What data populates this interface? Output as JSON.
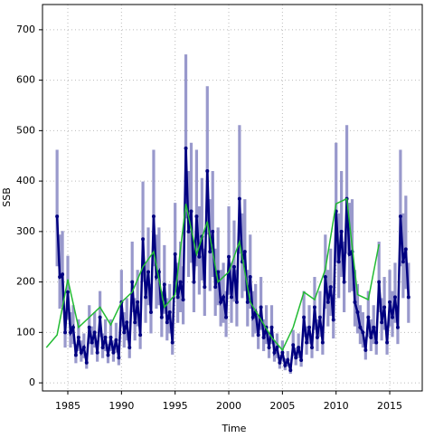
{
  "chart_data": {
    "type": "line",
    "xlabel": "Time",
    "ylabel": "SSB",
    "xlim": [
      1982.64,
      2018.03
    ],
    "ylim": [
      -16,
      750
    ],
    "xticks": [
      1985,
      1990,
      1995,
      2000,
      2005,
      2010,
      2015
    ],
    "yticks": [
      0,
      100,
      200,
      300,
      400,
      500,
      600,
      700
    ],
    "grid": true,
    "series": [
      {
        "color": "#000080",
        "band_color": "#9999cc",
        "x": [
          1984,
          1984.25,
          1984.5,
          1984.75,
          1985,
          1985.25,
          1985.5,
          1985.75,
          1986,
          1986.25,
          1986.5,
          1986.75,
          1987,
          1987.25,
          1987.5,
          1987.75,
          1988,
          1988.25,
          1988.5,
          1988.75,
          1989,
          1989.25,
          1989.5,
          1989.75,
          1990,
          1990.25,
          1990.5,
          1990.75,
          1991,
          1991.25,
          1991.5,
          1991.75,
          1992,
          1992.25,
          1992.5,
          1992.75,
          1993,
          1993.25,
          1993.5,
          1993.75,
          1994,
          1994.25,
          1994.5,
          1994.75,
          1995,
          1995.25,
          1995.5,
          1995.75,
          1996,
          1996.25,
          1996.5,
          1996.75,
          1997,
          1997.25,
          1997.5,
          1997.75,
          1998,
          1998.25,
          1998.5,
          1998.75,
          1999,
          1999.25,
          1999.5,
          1999.75,
          2000,
          2000.25,
          2000.5,
          2000.75,
          2001,
          2001.25,
          2001.5,
          2001.75,
          2002,
          2002.25,
          2002.5,
          2002.75,
          2003,
          2003.25,
          2003.5,
          2003.75,
          2004,
          2004.25,
          2004.5,
          2004.75,
          2005,
          2005.25,
          2005.5,
          2005.75,
          2006,
          2006.25,
          2006.5,
          2006.75,
          2007,
          2007.25,
          2007.5,
          2007.75,
          2008,
          2008.25,
          2008.5,
          2008.75,
          2009,
          2009.25,
          2009.5,
          2009.75,
          2010,
          2010.25,
          2010.5,
          2010.75,
          2011,
          2011.25,
          2011.5,
          2011.75,
          2012,
          2012.25,
          2012.5,
          2012.75,
          2013,
          2013.25,
          2013.5,
          2013.75,
          2014,
          2014.25,
          2014.5,
          2014.75,
          2015,
          2015.25,
          2015.5,
          2015.75,
          2016,
          2016.25,
          2016.5,
          2016.75
        ],
        "values": [
          330,
          210,
          215,
          100,
          180,
          100,
          110,
          55,
          90,
          60,
          70,
          40,
          110,
          80,
          100,
          60,
          130,
          70,
          90,
          55,
          90,
          60,
          85,
          50,
          160,
          100,
          120,
          70,
          200,
          120,
          160,
          95,
          285,
          170,
          220,
          140,
          330,
          210,
          220,
          130,
          195,
          120,
          140,
          80,
          255,
          170,
          200,
          165,
          465,
          300,
          340,
          200,
          330,
          250,
          290,
          190,
          420,
          260,
          300,
          190,
          220,
          160,
          170,
          130,
          250,
          170,
          230,
          160,
          365,
          240,
          260,
          160,
          210,
          130,
          140,
          95,
          150,
          90,
          110,
          70,
          110,
          60,
          70,
          40,
          60,
          35,
          45,
          25,
          75,
          50,
          70,
          45,
          130,
          80,
          110,
          70,
          150,
          90,
          130,
          80,
          210,
          160,
          190,
          125,
          340,
          240,
          300,
          200,
          365,
          255,
          260,
          160,
          140,
          110,
          100,
          65,
          130,
          90,
          110,
          80,
          200,
          120,
          150,
          80,
          160,
          130,
          170,
          110,
          330,
          240,
          265,
          170
        ],
        "lower": [
          231,
          147,
          151,
          70,
          126,
          70,
          77,
          39,
          63,
          42,
          49,
          28,
          77,
          56,
          70,
          42,
          91,
          49,
          63,
          39,
          63,
          42,
          60,
          35,
          112,
          70,
          84,
          49,
          140,
          84,
          112,
          67,
          200,
          119,
          154,
          98,
          231,
          147,
          154,
          91,
          137,
          84,
          98,
          56,
          179,
          119,
          140,
          116,
          326,
          210,
          238,
          140,
          231,
          175,
          203,
          133,
          294,
          182,
          210,
          133,
          154,
          112,
          119,
          91,
          175,
          119,
          161,
          112,
          256,
          168,
          182,
          112,
          147,
          91,
          98,
          67,
          105,
          63,
          77,
          49,
          77,
          42,
          49,
          28,
          42,
          25,
          32,
          18,
          53,
          35,
          49,
          32,
          91,
          56,
          77,
          49,
          105,
          63,
          91,
          56,
          147,
          112,
          133,
          88,
          238,
          168,
          210,
          140,
          256,
          179,
          182,
          112,
          98,
          77,
          70,
          46,
          91,
          63,
          77,
          56,
          140,
          84,
          105,
          56,
          112,
          91,
          119,
          77,
          231,
          168,
          186,
          119
        ],
        "upper": [
          462,
          294,
          301,
          140,
          252,
          140,
          154,
          77,
          126,
          84,
          98,
          56,
          154,
          112,
          140,
          84,
          182,
          98,
          126,
          77,
          126,
          84,
          119,
          70,
          224,
          140,
          168,
          98,
          280,
          168,
          224,
          133,
          399,
          238,
          308,
          196,
          462,
          294,
          308,
          182,
          273,
          168,
          196,
          112,
          357,
          238,
          280,
          231,
          651,
          420,
          476,
          280,
          462,
          350,
          406,
          266,
          588,
          364,
          420,
          266,
          308,
          224,
          238,
          182,
          350,
          238,
          322,
          224,
          511,
          336,
          364,
          224,
          294,
          182,
          196,
          133,
          210,
          126,
          154,
          98,
          154,
          84,
          98,
          56,
          84,
          49,
          63,
          35,
          105,
          70,
          98,
          63,
          182,
          112,
          154,
          98,
          210,
          126,
          182,
          112,
          294,
          224,
          266,
          175,
          476,
          336,
          420,
          280,
          511,
          357,
          364,
          224,
          196,
          154,
          140,
          91,
          182,
          126,
          154,
          112,
          280,
          168,
          210,
          112,
          224,
          182,
          238,
          154,
          462,
          336,
          371,
          238
        ]
      },
      {
        "color": "#22bb33",
        "x": [
          1983,
          1984,
          1985,
          1986,
          1987,
          1988,
          1989,
          1990,
          1991,
          1992,
          1993,
          1994,
          1995,
          1996,
          1997,
          1998,
          1999,
          2000,
          2001,
          2002,
          2003,
          2004,
          2005,
          2006,
          2007,
          2008,
          2009,
          2010,
          2011,
          2012,
          2013,
          2014
        ],
        "values": [
          70,
          95,
          205,
          110,
          130,
          150,
          115,
          160,
          180,
          230,
          260,
          150,
          175,
          355,
          255,
          320,
          200,
          220,
          280,
          160,
          125,
          90,
          65,
          110,
          180,
          165,
          225,
          355,
          365,
          175,
          165,
          275
        ]
      }
    ]
  }
}
